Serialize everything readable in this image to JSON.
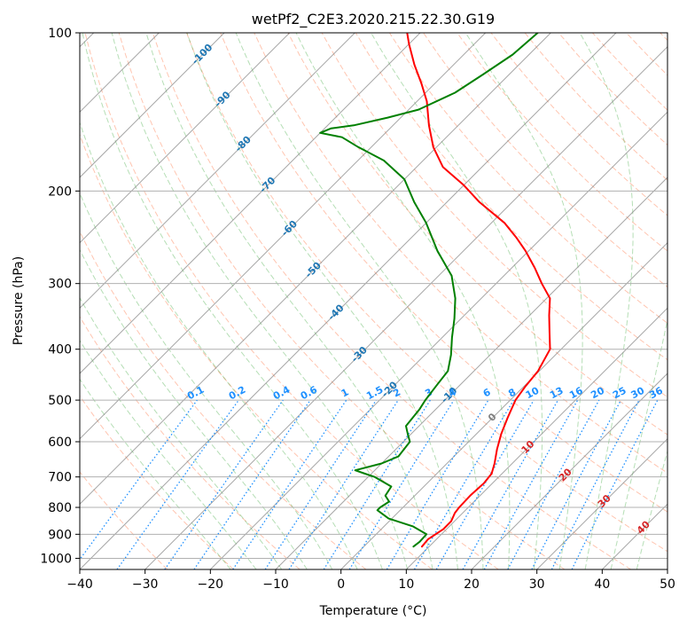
{
  "chart_data": {
    "type": "line",
    "title": "wetPf2_C2E3.2020.215.22.30.G19",
    "xlabel": "Temperature (°C)",
    "ylabel": "Pressure (hPa)",
    "xlim": [
      -40,
      50
    ],
    "ylim": [
      1050,
      100
    ],
    "yscale": "log",
    "grid": true,
    "x_ticks": [
      -40,
      -30,
      -20,
      -10,
      0,
      10,
      20,
      30,
      40,
      50
    ],
    "y_ticks": [
      100,
      200,
      300,
      400,
      500,
      600,
      700,
      800,
      900,
      1000
    ],
    "colors": {
      "temperature": "#ff0000",
      "dewpoint": "#008000",
      "isotherm": "#808080",
      "dry_adiabat": "#ff7f50",
      "moist_adiabat": "#2ca02c",
      "mixing_ratio": "#1e90ff",
      "isotherm_label_cold": "#1f77b4",
      "isotherm_label_warm": "#d62728",
      "isotherm_label_zero": "#808080"
    },
    "series": [
      {
        "key": "temperature",
        "p": [
          950,
          920,
          880,
          850,
          820,
          800,
          760,
          720,
          690,
          660,
          620,
          580,
          540,
          500,
          470,
          440,
          400,
          370,
          345,
          320,
          300,
          280,
          260,
          245,
          230,
          210,
          195,
          180,
          165,
          150,
          135,
          125,
          115,
          105,
          100
        ],
        "t": [
          8.9,
          8.7,
          9.5,
          9.5,
          8.8,
          8.6,
          8.5,
          8.7,
          8.4,
          7.3,
          5.5,
          3.8,
          2.3,
          0.8,
          0.2,
          -0.2,
          -1.7,
          -4.5,
          -7.0,
          -9.5,
          -13.0,
          -16.5,
          -20.5,
          -24.0,
          -28.0,
          -35.0,
          -40.0,
          -46.0,
          -50.5,
          -54.5,
          -58.5,
          -62.0,
          -66.0,
          -70.0,
          -72.0
        ]
      },
      {
        "key": "dewpoint",
        "p": [
          950,
          930,
          900,
          870,
          840,
          810,
          800,
          780,
          760,
          730,
          700,
          690,
          680,
          660,
          640,
          600,
          580,
          560,
          520,
          500,
          470,
          440,
          410,
          380,
          350,
          320,
          290,
          260,
          230,
          210,
          190,
          175,
          165,
          158,
          155,
          152,
          150,
          145,
          140,
          130,
          120,
          110,
          100
        ],
        "t": [
          7.6,
          7.8,
          7.7,
          4.5,
          -0.5,
          -3.5,
          -3.5,
          -3.0,
          -4.5,
          -5.0,
          -9.0,
          -11.0,
          -13.0,
          -10.0,
          -8.5,
          -9.0,
          -10.5,
          -12.0,
          -12.5,
          -13.0,
          -13.5,
          -14.0,
          -16.0,
          -18.5,
          -21.0,
          -24.0,
          -28.0,
          -34.0,
          -40.0,
          -45.0,
          -50.0,
          -56.0,
          -62.0,
          -66.0,
          -70.0,
          -69.0,
          -66.0,
          -62.0,
          -58.5,
          -55.5,
          -54.0,
          -52.5,
          -52.0
        ]
      }
    ],
    "isotherm_labels": [
      -100,
      -90,
      -80,
      -70,
      -60,
      -50,
      -40,
      -30,
      -20,
      -10,
      0,
      10,
      20,
      30,
      40
    ],
    "mixing_ratio_labels": [
      "0.1",
      "0.2",
      "0.4",
      "0.6",
      "1",
      "1.5",
      "2",
      "3",
      "4",
      "6",
      "8",
      "10",
      "13",
      "16",
      "20",
      "25",
      "30",
      "36"
    ]
  }
}
